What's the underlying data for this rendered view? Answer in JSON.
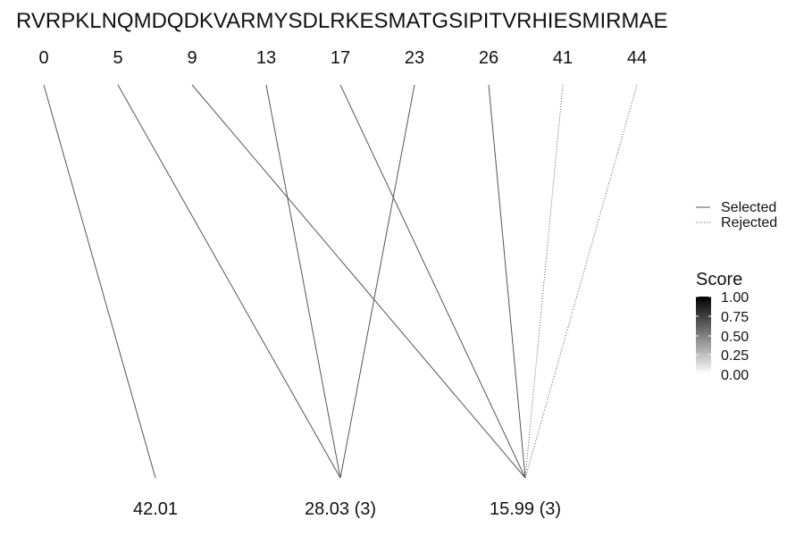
{
  "sequence": "RVRPKLNQMDQDKVARMYSDLRKESMATGSIPITVRHIESMIRMAE",
  "top_positions": [
    "0",
    "5",
    "9",
    "13",
    "17",
    "23",
    "26",
    "41",
    "44"
  ],
  "bottom_labels": [
    "42.01",
    "28.03 (3)",
    "15.99 (3)"
  ],
  "links": [
    {
      "from": "0",
      "to": "42.01",
      "status": "selected"
    },
    {
      "from": "5",
      "to": "28.03 (3)",
      "status": "selected"
    },
    {
      "from": "13",
      "to": "28.03 (3)",
      "status": "selected"
    },
    {
      "from": "23",
      "to": "28.03 (3)",
      "status": "selected"
    },
    {
      "from": "9",
      "to": "15.99 (3)",
      "status": "selected"
    },
    {
      "from": "17",
      "to": "15.99 (3)",
      "status": "selected"
    },
    {
      "from": "26",
      "to": "15.99 (3)",
      "status": "selected"
    },
    {
      "from": "41",
      "to": "15.99 (3)",
      "status": "rejected"
    },
    {
      "from": "44",
      "to": "15.99 (3)",
      "status": "rejected"
    }
  ],
  "legend": {
    "selected": "Selected",
    "rejected": "Rejected",
    "score_title": "Score",
    "score_ticks": [
      "1.00",
      "0.75",
      "0.50",
      "0.25",
      "0.00"
    ]
  },
  "colors": {
    "line": "#555555",
    "score_high": "#000000",
    "score_low": "#ffffff"
  }
}
